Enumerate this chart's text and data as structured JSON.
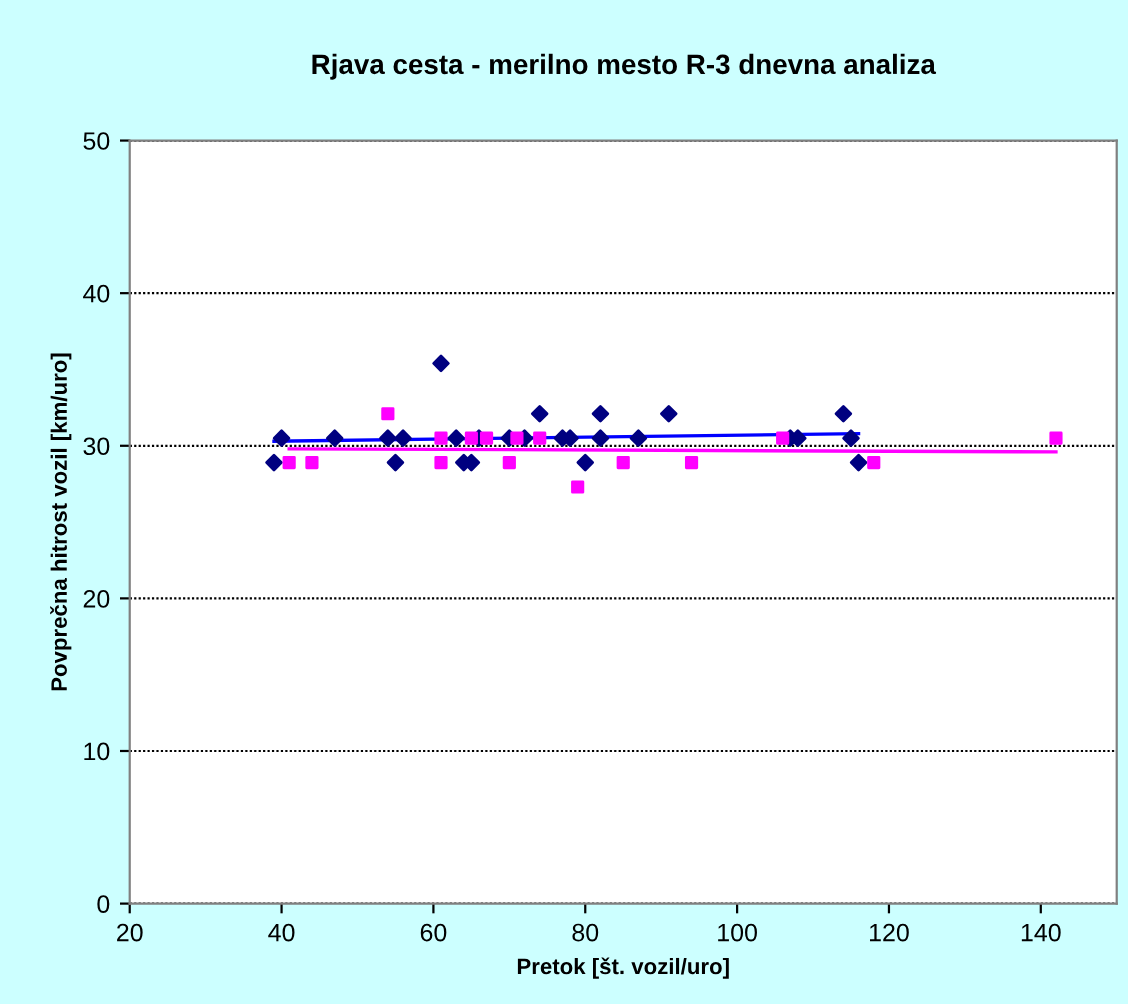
{
  "chart_data": {
    "type": "scatter",
    "title": "Rjava cesta - merilno mesto R-3 dnevna analiza",
    "xlabel": "Pretok [št. vozil/uro]",
    "ylabel": "Povprečna hitrost vozil [km/uro]",
    "xlim": [
      20,
      150
    ],
    "xticks": [
      20,
      40,
      60,
      80,
      100,
      120,
      140
    ],
    "ylim": [
      0,
      50
    ],
    "yticks": [
      0,
      10,
      20,
      30,
      40,
      50
    ],
    "grid": "y",
    "legend": false,
    "series": [
      {
        "marker": "diamond",
        "color": "#000080",
        "x": [
          39,
          40,
          47,
          54,
          55,
          56,
          61,
          63,
          64,
          65,
          66,
          70,
          72,
          74,
          77,
          78,
          80,
          82,
          82,
          87,
          91,
          107,
          108,
          114,
          115,
          116
        ],
        "values": [
          28.9,
          30.5,
          30.5,
          30.5,
          28.9,
          30.5,
          35.4,
          30.5,
          28.9,
          28.9,
          30.5,
          30.5,
          30.5,
          32.1,
          30.5,
          30.5,
          28.9,
          30.5,
          32.1,
          30.5,
          32.1,
          30.5,
          30.5,
          32.1,
          30.5,
          28.9
        ]
      },
      {
        "marker": "square",
        "color": "#ff00ff",
        "x": [
          41,
          44,
          54,
          61,
          61,
          65,
          67,
          70,
          71,
          74,
          79,
          85,
          94,
          106,
          118,
          142
        ],
        "values": [
          28.9,
          28.9,
          32.1,
          30.5,
          28.9,
          30.5,
          30.5,
          28.9,
          30.5,
          30.5,
          27.3,
          28.9,
          28.9,
          30.5,
          28.9,
          30.5
        ]
      },
      {
        "type": "line",
        "color": "#0000ff",
        "x": [
          39,
          116
        ],
        "values": [
          30.3,
          30.8
        ]
      },
      {
        "type": "line",
        "color": "#ff00ff",
        "x": [
          41,
          142
        ],
        "values": [
          29.8,
          29.6
        ]
      }
    ]
  }
}
